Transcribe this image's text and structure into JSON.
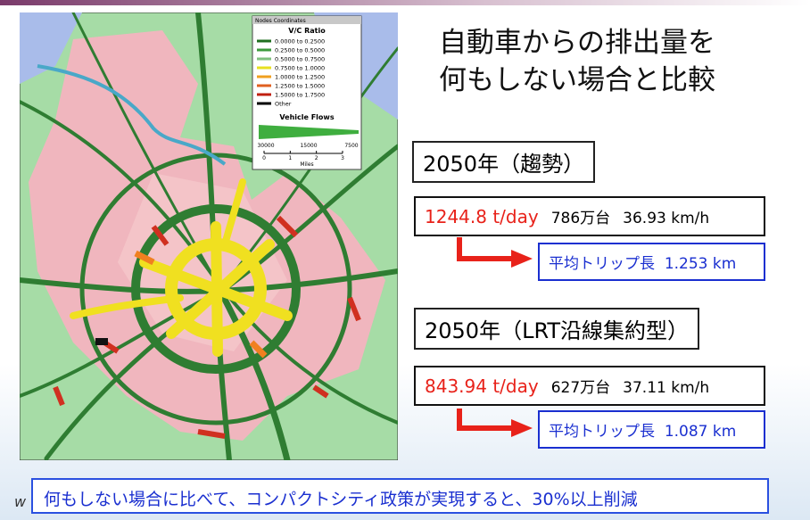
{
  "title": {
    "lines": [
      "自動車からの排出量を",
      "何もしない場合と比較"
    ]
  },
  "map_legend": {
    "header": "Nodes Coordinates",
    "vc_title": "V/C Ratio",
    "vc_items": [
      "0.0000 to 0.2500",
      "0.2500 to 0.5000",
      "0.5000 to 0.7500",
      "0.7500 to 1.0000",
      "1.0000 to 1.2500",
      "1.2500 to 1.5000",
      "1.5000 to 1.7500",
      "Other"
    ],
    "flows_title": "Vehicle Flows",
    "flow_scale": [
      "30000",
      "15000",
      "7500"
    ],
    "miles_scale": [
      "0",
      "1",
      "2",
      "3"
    ],
    "miles_label": "Miles"
  },
  "scenarios": [
    {
      "heading": "2050年（趨勢）",
      "emission": "1244.8 t/day",
      "vehicles": "786万台",
      "speed": "36.93 km/h",
      "trip_label": "平均トリップ長",
      "trip_length": "1.253 km"
    },
    {
      "heading": "2050年（LRT沿線集約型）",
      "emission": "843.94 t/day",
      "vehicles": "627万台",
      "speed": "37.11 km/h",
      "trip_label": "平均トリップ長",
      "trip_length": "1.087 km"
    }
  ],
  "footer": "何もしない場合に比べて、コンパクトシティ政策が実現すると、30%以上削減",
  "corner_mark": "w"
}
